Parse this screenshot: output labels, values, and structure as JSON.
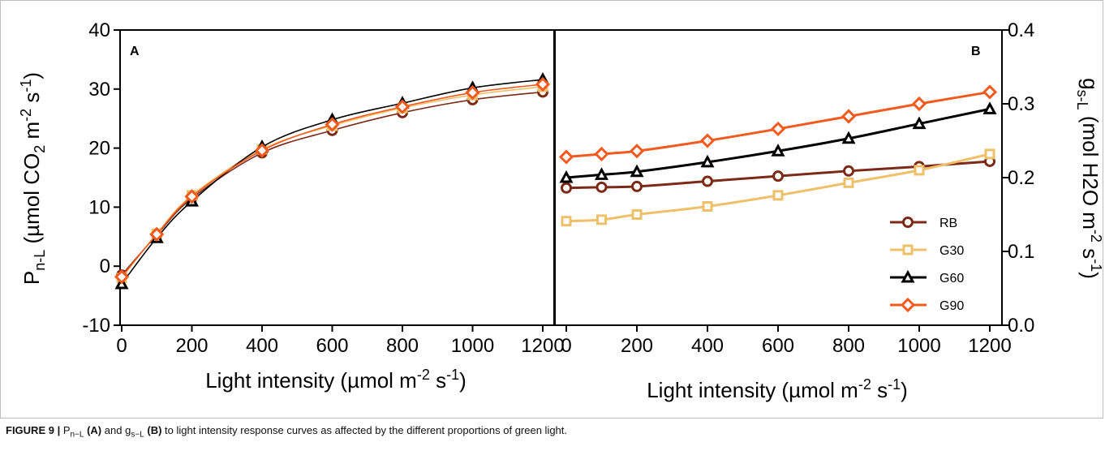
{
  "colors": {
    "RB": "#7a2a16",
    "G30": "#efc06a",
    "G60": "#000000",
    "G90": "#f25a1e"
  },
  "chart_data": [
    {
      "type": "line",
      "panel_label": "A",
      "xlabel": "Light intensity (µmol m-2 s-1)",
      "ylabel": "Pn-L (µmol CO2 m-2 s-1)",
      "xlim": [
        0,
        1200
      ],
      "ylim": [
        -10,
        40
      ],
      "x_ticks": [
        "0",
        "200",
        "400",
        "600",
        "800",
        "1000",
        "1200"
      ],
      "y_ticks": [
        "-10",
        "0",
        "10",
        "20",
        "30",
        "40"
      ],
      "x": [
        0,
        100,
        200,
        400,
        600,
        800,
        1000,
        1200
      ],
      "series": [
        {
          "name": "RB",
          "values": [
            -1.5,
            5.3,
            11.5,
            19.2,
            23.0,
            26.0,
            28.2,
            29.5
          ],
          "marker": "circle"
        },
        {
          "name": "G30",
          "values": [
            -2.0,
            5.5,
            12.0,
            19.8,
            23.8,
            26.8,
            29.0,
            30.4
          ],
          "marker": "square"
        },
        {
          "name": "G60",
          "values": [
            -3.0,
            4.8,
            11.0,
            20.2,
            24.8,
            27.6,
            30.2,
            31.6
          ],
          "marker": "triangle"
        },
        {
          "name": "G90",
          "values": [
            -1.8,
            5.4,
            11.8,
            19.6,
            24.0,
            27.0,
            29.4,
            30.8
          ],
          "marker": "diamond"
        }
      ]
    },
    {
      "type": "line",
      "panel_label": "B",
      "xlabel": "Light intensity (µmol m-2 s-1)",
      "ylabel": "gs-L (mol H2O m-2 s-1)",
      "xlim": [
        0,
        1200
      ],
      "ylim": [
        0.0,
        0.4
      ],
      "x_ticks": [
        "0",
        "200",
        "400",
        "600",
        "800",
        "1000",
        "1200"
      ],
      "y_ticks": [
        "0.0",
        "0.1",
        "0.2",
        "0.3",
        "0.4"
      ],
      "x": [
        0,
        100,
        200,
        400,
        600,
        800,
        1000,
        1200
      ],
      "legend_position": "right",
      "series": [
        {
          "name": "RB",
          "values": [
            0.186,
            0.187,
            0.188,
            0.195,
            0.202,
            0.209,
            0.215,
            0.222
          ],
          "marker": "circle"
        },
        {
          "name": "G30",
          "values": [
            0.141,
            0.143,
            0.15,
            0.161,
            0.176,
            0.193,
            0.21,
            0.232
          ],
          "marker": "square"
        },
        {
          "name": "G60",
          "values": [
            0.2,
            0.204,
            0.208,
            0.221,
            0.236,
            0.253,
            0.273,
            0.293
          ],
          "marker": "triangle"
        },
        {
          "name": "G90",
          "values": [
            0.228,
            0.232,
            0.236,
            0.25,
            0.266,
            0.283,
            0.3,
            0.316
          ],
          "marker": "diamond"
        }
      ]
    }
  ],
  "caption": {
    "figure_label": "FIGURE 9 |",
    "var_a": "P",
    "var_a_sub": "n−L",
    "panel_a": "(A)",
    "and_text": "and",
    "var_b": "g",
    "var_b_sub": "s−L",
    "panel_b": "(B)",
    "rest": "to light intensity response curves as affected by the different proportions of green light."
  }
}
